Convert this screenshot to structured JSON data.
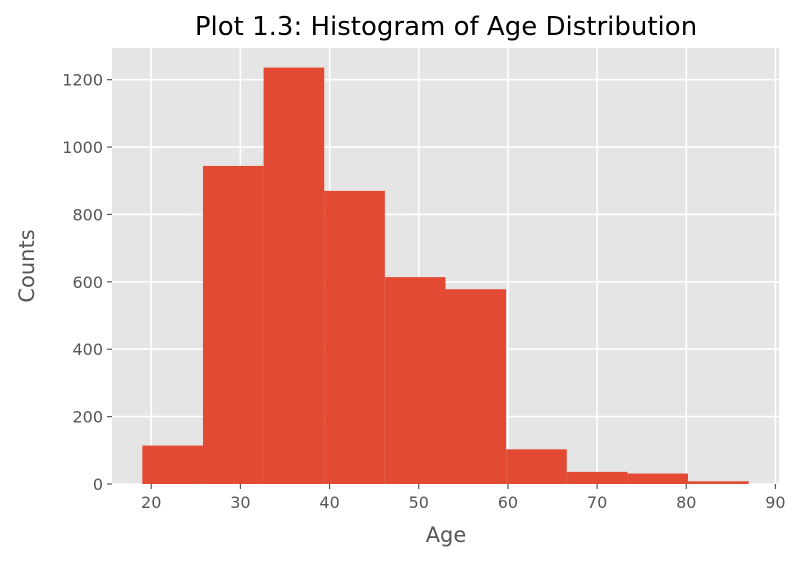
{
  "chart_data": {
    "type": "bar",
    "title": "Plot 1.3: Histogram of Age Distribution",
    "xlabel": "Age",
    "ylabel": "Counts",
    "xlim": [
      15.6,
      90.4
    ],
    "ylim": [
      0,
      1294
    ],
    "x_ticks": [
      20,
      30,
      40,
      50,
      60,
      70,
      80,
      90
    ],
    "y_ticks": [
      0,
      200,
      400,
      600,
      800,
      1000,
      1200
    ],
    "bins": [
      {
        "start": 19.0,
        "end": 25.8,
        "value": 114
      },
      {
        "start": 25.8,
        "end": 32.6,
        "value": 944
      },
      {
        "start": 32.6,
        "end": 39.4,
        "value": 1236
      },
      {
        "start": 39.4,
        "end": 46.2,
        "value": 870
      },
      {
        "start": 46.2,
        "end": 53.0,
        "value": 614
      },
      {
        "start": 53.0,
        "end": 59.8,
        "value": 578
      },
      {
        "start": 59.8,
        "end": 66.6,
        "value": 103
      },
      {
        "start": 66.6,
        "end": 73.4,
        "value": 36
      },
      {
        "start": 73.4,
        "end": 80.2,
        "value": 31
      },
      {
        "start": 80.2,
        "end": 87.0,
        "value": 8
      }
    ],
    "grid": true,
    "colors": {
      "bar": "#e24a33",
      "background": "#e5e5e5",
      "grid": "#ffffff",
      "text": "#555555"
    }
  }
}
